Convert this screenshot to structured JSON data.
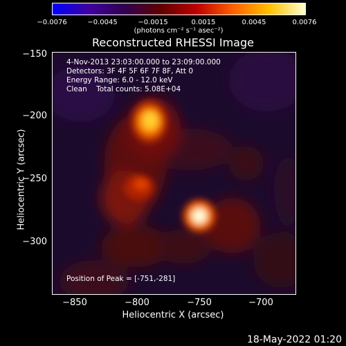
{
  "colorbar": {
    "ticks": [
      "−0.0076",
      "−0.0045",
      "−0.0015",
      "0.0015",
      "0.0045",
      "0.0076"
    ],
    "units": "(photons cm⁻² s⁻¹ asec⁻²)",
    "colors": [
      "#0000ff",
      "#4000a0",
      "#300050",
      "#600000",
      "#c00000",
      "#ff6000",
      "#ffc000",
      "#ffffd0"
    ]
  },
  "title": "Reconstructed RHESSI Image",
  "info": {
    "time": "4-Nov-2013 23:03:00.000 to 23:09:00.000",
    "detectors": "Detectors: 3F 4F 5F 6F 7F 8F, Att 0",
    "energy": "Energy Range: 6.0 - 12.0 keV",
    "clean": "Clean    Total counts: 5.08E+04"
  },
  "peak": "Position of Peak = [-751,-281]",
  "axes": {
    "xlabel": "Heliocentric X (arcsec)",
    "ylabel": "Heliocentric Y (arcsec)",
    "xticks": [
      "−850",
      "−800",
      "−750",
      "−700"
    ],
    "yticks": [
      "−150",
      "−200",
      "−250",
      "−300"
    ],
    "xrange": [
      -870,
      -675
    ],
    "yrange": [
      -338,
      -146
    ]
  },
  "sources": [
    {
      "x": -792,
      "y": -203,
      "strength": 0.85
    },
    {
      "x": -751,
      "y": -281,
      "strength": 1.0
    },
    {
      "x": -802,
      "y": -258,
      "strength": 0.45
    },
    {
      "x": -825,
      "y": -235,
      "strength": 0.35
    }
  ],
  "date_stamp": "18-May-2022 01:20"
}
